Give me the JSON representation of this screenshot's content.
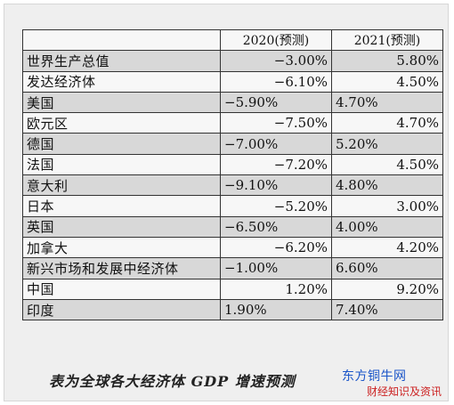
{
  "table": {
    "headers": [
      "",
      "2020(预测)",
      "2021(预测)"
    ],
    "rows": [
      {
        "name": "世界生产总值",
        "v2020": "−3.00%",
        "v2021": "5.80%"
      },
      {
        "name": "发达经济体",
        "v2020": "−6.10%",
        "v2021": "4.50%"
      },
      {
        "name": "美国",
        "v2020": "−5.90%",
        "v2021": "4.70%"
      },
      {
        "name": "欧元区",
        "v2020": "−7.50%",
        "v2021": "4.70%"
      },
      {
        "name": "德国",
        "v2020": "−7.00%",
        "v2021": "5.20%"
      },
      {
        "name": "法国",
        "v2020": "−7.20%",
        "v2021": "4.50%"
      },
      {
        "name": "意大利",
        "v2020": "−9.10%",
        "v2021": "4.80%"
      },
      {
        "name": "日本",
        "v2020": "−5.20%",
        "v2021": "3.00%"
      },
      {
        "name": "英国",
        "v2020": "−6.50%",
        "v2021": "4.00%"
      },
      {
        "name": "加拿大",
        "v2020": "−6.20%",
        "v2021": "4.20%"
      },
      {
        "name": "新兴市场和发展中经济体",
        "v2020": "−1.00%",
        "v2021": "6.60%"
      },
      {
        "name": "中国",
        "v2020": "1.20%",
        "v2021": "9.20%"
      },
      {
        "name": "印度",
        "v2020": "1.90%",
        "v2021": "7.40%"
      }
    ]
  },
  "caption": "表为全球各大经济体 GDP 增速预测",
  "watermark": {
    "top": "东方铜牛网",
    "bottom": "财经知识及资讯"
  },
  "colors": {
    "row_shade": "#d8d8d8",
    "row_plain": "#f7f7f7",
    "watermark_top": "#1a55c8",
    "watermark_bottom": "#cc2222"
  }
}
